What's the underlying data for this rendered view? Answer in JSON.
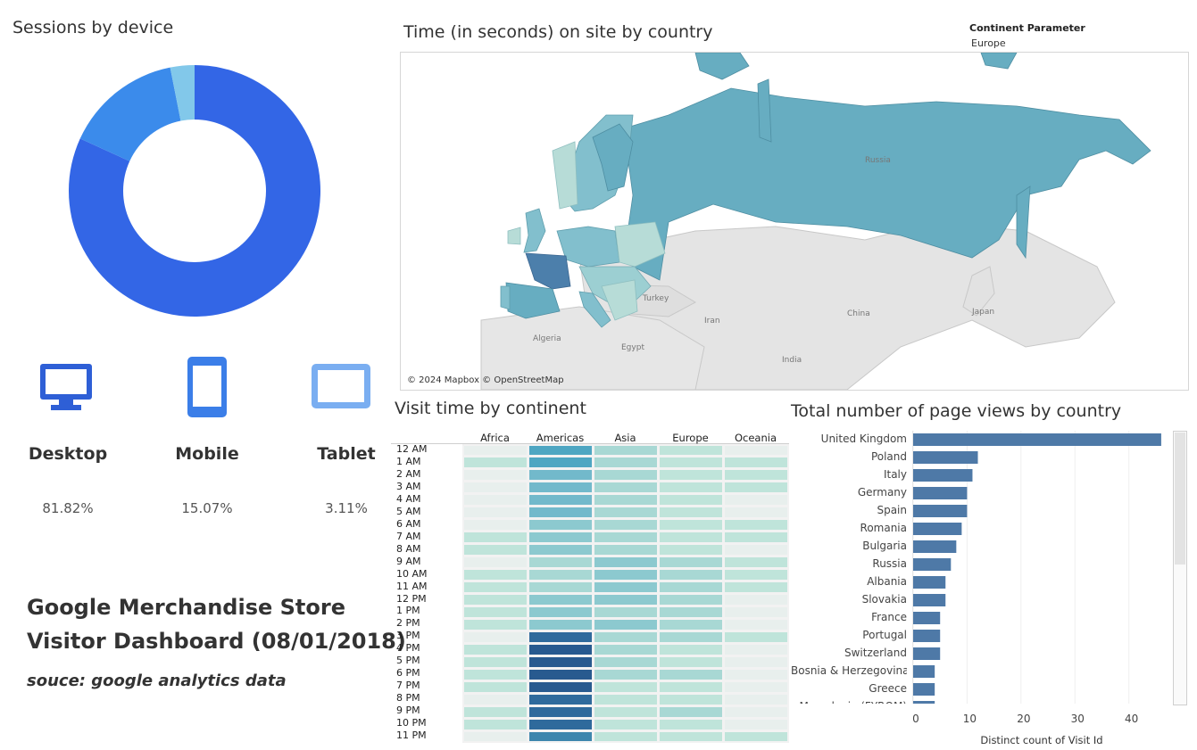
{
  "sessions": {
    "title": "Sessions by device",
    "devices": [
      {
        "label": "Desktop",
        "pct_text": "81.82%",
        "share": 81.82,
        "color": "#3366e6",
        "icon": "desktop-icon"
      },
      {
        "label": "Mobile",
        "pct_text": "15.07%",
        "share": 15.07,
        "color": "#3b8beb",
        "icon": "mobile-icon"
      },
      {
        "label": "Tablet",
        "pct_text": "3.11%",
        "share": 3.11,
        "color": "#82c8ea",
        "icon": "tablet-icon"
      }
    ]
  },
  "dashboard": {
    "title_line1": "Google Merchandise Store",
    "title_line2": "Visitor Dashboard (08/01/2018)",
    "source": "souce: google analytics data"
  },
  "map": {
    "title": "Time (in seconds) on site by country",
    "parameter_label": "Continent Parameter",
    "parameter_value": "Europe",
    "attribution": "© 2024 Mapbox © OpenStreetMap",
    "place_labels": [
      "Russia",
      "Turkey",
      "Iran",
      "China",
      "Japan",
      "Algeria",
      "Egypt",
      "India"
    ]
  },
  "heatmap": {
    "title": "Visit time by continent",
    "columns": [
      "Africa",
      "Americas",
      "Asia",
      "Europe",
      "Oceania"
    ],
    "rows": [
      "12 AM",
      "1 AM",
      "2 AM",
      "3 AM",
      "4 AM",
      "5 AM",
      "6 AM",
      "7 AM",
      "8 AM",
      "9 AM",
      "10 AM",
      "11 AM",
      "12 PM",
      "1 PM",
      "2 PM",
      "3 PM",
      "4 PM",
      "5 PM",
      "6 PM",
      "7 PM",
      "8 PM",
      "9 PM",
      "10 PM",
      "11 PM"
    ],
    "levels": [
      [
        0,
        5,
        2,
        1,
        0
      ],
      [
        1,
        5,
        2,
        1,
        1
      ],
      [
        0,
        4,
        2,
        1,
        1
      ],
      [
        0,
        4,
        2,
        1,
        1
      ],
      [
        0,
        4,
        2,
        1,
        0
      ],
      [
        0,
        4,
        2,
        1,
        0
      ],
      [
        0,
        3,
        2,
        1,
        1
      ],
      [
        1,
        3,
        2,
        1,
        1
      ],
      [
        1,
        3,
        2,
        1,
        0
      ],
      [
        0,
        2,
        3,
        2,
        1
      ],
      [
        1,
        2,
        3,
        2,
        1
      ],
      [
        1,
        2,
        3,
        2,
        1
      ],
      [
        1,
        3,
        3,
        2,
        0
      ],
      [
        1,
        3,
        2,
        2,
        0
      ],
      [
        1,
        3,
        3,
        2,
        0
      ],
      [
        0,
        7,
        2,
        2,
        1
      ],
      [
        1,
        8,
        2,
        1,
        0
      ],
      [
        1,
        8,
        2,
        1,
        0
      ],
      [
        1,
        8,
        2,
        2,
        0
      ],
      [
        1,
        8,
        1,
        1,
        0
      ],
      [
        0,
        7,
        1,
        1,
        0
      ],
      [
        1,
        7,
        1,
        2,
        0
      ],
      [
        1,
        7,
        1,
        1,
        0
      ],
      [
        0,
        6,
        1,
        1,
        1
      ]
    ],
    "palette": [
      "#e8efed",
      "#bfe4da",
      "#a8d8d4",
      "#8cc9cf",
      "#72b9cb",
      "#4ea6c2",
      "#3d86ad",
      "#2f6a9c",
      "#285a8f"
    ]
  },
  "pageviews": {
    "title": "Total number of page views by country",
    "axis_label": "Distinct count of Visit Id",
    "ticks": [
      "0",
      "10",
      "20",
      "30",
      "40"
    ],
    "bar_color": "#4e79a7",
    "chart_data": {
      "type": "bar",
      "orientation": "horizontal",
      "categories": [
        "United Kingdom",
        "Poland",
        "Italy",
        "Germany",
        "Spain",
        "Romania",
        "Bulgaria",
        "Russia",
        "Albania",
        "Slovakia",
        "France",
        "Portugal",
        "Switzerland",
        "Bosnia & Herzegovina",
        "Greece",
        "Macedonia (FYROM)"
      ],
      "values": [
        46,
        12,
        11,
        10,
        10,
        9,
        8,
        7,
        6,
        6,
        5,
        5,
        5,
        4,
        4,
        4
      ],
      "xlabel": "Distinct count of Visit Id",
      "xlim": [
        0,
        48
      ]
    }
  }
}
